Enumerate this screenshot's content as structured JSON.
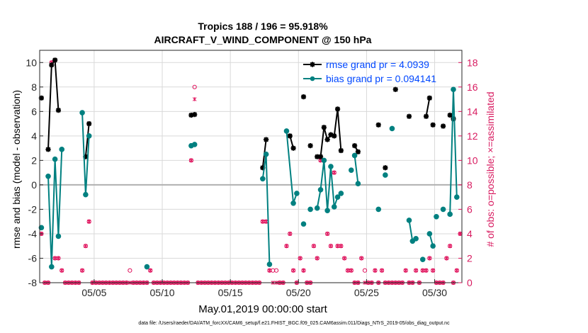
{
  "chart_data": {
    "type": "line",
    "title": "Tropics 188 / 196 = 95.918%",
    "subtitle": "AIRCRAFT_V_WIND_COMPONENT @ 150 hPa",
    "xlabel": "May.01,2019 00:00:00 start",
    "ylabel": "rmse and bias (model - observation)",
    "y2label": "# of obs: o=possible; ×=assimilated",
    "footnote": "data file: /Users/raeder/DAI/ATM_forcXX/CAM6_setup/f.e21.FHIST_BGC.f09_025.CAM6assim.011/Diags_NTrS_2019-05/obs_diag_output.nc",
    "xlim": [
      1.0,
      32.0
    ],
    "ylim": [
      -8,
      11
    ],
    "y2lim": [
      0,
      19
    ],
    "x_ticks": [
      5,
      10,
      15,
      20,
      25,
      30
    ],
    "x_tick_labels": [
      "05/05",
      "05/10",
      "05/15",
      "05/20",
      "05/25",
      "05/30"
    ],
    "y_ticks": [
      -8,
      -6,
      -4,
      -2,
      0,
      2,
      4,
      6,
      8,
      10
    ],
    "y_tick_labels": [
      "-8",
      "-6",
      "-4",
      "-2",
      "0",
      "2",
      "4",
      "6",
      "8",
      "10"
    ],
    "y2_ticks": [
      0,
      2,
      4,
      6,
      8,
      10,
      12,
      14,
      16,
      18
    ],
    "y2_tick_labels": [
      "0",
      "2",
      "4",
      "6",
      "8",
      "10",
      "12",
      "14",
      "16",
      "18"
    ],
    "grid": true,
    "legend_position": "top-right",
    "colors": {
      "rmse": "#000000",
      "bias": "#008080",
      "obs": "#e0105b",
      "zero": "#b0b0b0",
      "grid": "#d9d9d9"
    },
    "series": [
      {
        "name": "rmse grand pr = 4.0939",
        "marker": "asterisk",
        "segments": [
          [
            [
              1.125,
              7.1
            ]
          ],
          [
            [
              1.625,
              2.9
            ],
            [
              1.875,
              9.8
            ],
            [
              2.125,
              10.2
            ],
            [
              2.375,
              6.1
            ]
          ],
          [
            [
              4.375,
              2.3
            ],
            [
              4.625,
              5.0
            ]
          ],
          [
            [
              12.125,
              5.7
            ],
            [
              12.375,
              5.75
            ]
          ],
          [
            [
              17.375,
              1.4
            ],
            [
              17.625,
              3.7
            ]
          ],
          [
            [
              19.375,
              4.0
            ],
            [
              19.625,
              3.0
            ]
          ],
          [
            [
              20.375,
              7.2
            ]
          ],
          [
            [
              20.875,
              3.2
            ]
          ],
          [
            [
              21.375,
              2.3
            ],
            [
              21.625,
              2.3
            ],
            [
              21.875,
              4.7
            ],
            [
              22.125,
              3.7
            ],
            [
              22.375,
              4.1
            ],
            [
              22.625,
              4.0
            ],
            [
              22.875,
              6.2
            ],
            [
              23.125,
              2.8
            ]
          ],
          [
            [
              24.125,
              3.2
            ],
            [
              24.375,
              2.7
            ]
          ],
          [
            [
              25.875,
              4.9
            ]
          ],
          [
            [
              26.375,
              1.4
            ]
          ],
          [
            [
              27.125,
              7.8
            ]
          ],
          [
            [
              28.125,
              5.6
            ]
          ],
          [
            [
              29.375,
              5.6
            ],
            [
              29.625,
              7.1
            ]
          ],
          [
            [
              29.875,
              4.9
            ]
          ],
          [
            [
              30.625,
              4.8
            ]
          ],
          [
            [
              31.125,
              5.7
            ],
            [
              31.375,
              5.4
            ]
          ]
        ]
      },
      {
        "name": "bias grand pr = 0.094141",
        "marker": "circle",
        "segments": [
          [
            [
              1.125,
              -3.5
            ]
          ],
          [
            [
              1.625,
              0.7
            ],
            [
              1.875,
              -6.7
            ],
            [
              2.125,
              2.1
            ],
            [
              2.375,
              -4.2
            ],
            [
              2.625,
              2.9
            ]
          ],
          [
            [
              4.125,
              5.9
            ],
            [
              4.375,
              -0.8
            ],
            [
              4.625,
              4.0
            ]
          ],
          [
            [
              8.875,
              -6.7
            ]
          ],
          [
            [
              12.125,
              3.2
            ],
            [
              12.375,
              3.3
            ]
          ],
          [
            [
              17.375,
              0.5
            ],
            [
              17.625,
              2.5
            ],
            [
              17.875,
              -6.5
            ]
          ],
          [
            [
              19.125,
              4.4
            ],
            [
              19.625,
              -1.5
            ],
            [
              19.875,
              -0.7
            ]
          ],
          [
            [
              20.375,
              -3.2
            ]
          ],
          [
            [
              20.875,
              -2.0
            ]
          ],
          [
            [
              21.375,
              -1.9
            ],
            [
              21.625,
              -0.4
            ],
            [
              21.875,
              2.0
            ],
            [
              22.125,
              -2.1
            ],
            [
              22.375,
              1.5
            ],
            [
              22.625,
              -1.8
            ],
            [
              22.875,
              -1.0
            ],
            [
              23.125,
              -0.7
            ]
          ],
          [
            [
              23.875,
              1.2
            ]
          ],
          [
            [
              24.125,
              2.4
            ],
            [
              24.375,
              0.1
            ]
          ],
          [
            [
              25.875,
              -2.0
            ]
          ],
          [
            [
              26.375,
              0.8
            ]
          ],
          [
            [
              26.875,
              4.6
            ]
          ],
          [
            [
              28.125,
              -2.9
            ],
            [
              28.375,
              -4.6
            ],
            [
              28.625,
              -4.4
            ]
          ],
          [
            [
              29.125,
              -6.1
            ]
          ],
          [
            [
              29.625,
              -4.0
            ],
            [
              29.875,
              -5.0
            ]
          ],
          [
            [
              30.125,
              -2.6
            ]
          ],
          [
            [
              30.625,
              -2.0
            ]
          ],
          [
            [
              31.125,
              -2.4
            ],
            [
              31.375,
              7.8
            ],
            [
              31.625,
              -1.0
            ]
          ]
        ]
      }
    ],
    "obs_possible": [
      [
        1.125,
        4
      ],
      [
        1.375,
        0
      ],
      [
        1.625,
        0
      ],
      [
        1.875,
        18
      ],
      [
        2.125,
        2
      ],
      [
        2.375,
        2
      ],
      [
        2.625,
        1
      ],
      [
        2.875,
        0
      ],
      [
        3.125,
        0
      ],
      [
        3.375,
        0
      ],
      [
        3.625,
        0
      ],
      [
        3.875,
        0
      ],
      [
        4.125,
        1
      ],
      [
        4.375,
        3
      ],
      [
        4.625,
        5
      ],
      [
        4.875,
        0
      ],
      [
        5.125,
        0
      ],
      [
        5.375,
        0
      ],
      [
        5.625,
        0
      ],
      [
        5.875,
        0
      ],
      [
        6.125,
        0
      ],
      [
        6.375,
        0
      ],
      [
        6.625,
        0
      ],
      [
        6.875,
        0
      ],
      [
        7.125,
        0
      ],
      [
        7.375,
        0
      ],
      [
        7.625,
        1
      ],
      [
        7.875,
        0
      ],
      [
        8.125,
        0
      ],
      [
        8.375,
        0
      ],
      [
        8.625,
        0
      ],
      [
        8.875,
        0
      ],
      [
        9.125,
        1
      ],
      [
        9.375,
        0
      ],
      [
        9.625,
        0
      ],
      [
        9.875,
        0
      ],
      [
        10.125,
        0
      ],
      [
        10.375,
        0
      ],
      [
        10.625,
        0
      ],
      [
        10.875,
        0
      ],
      [
        11.125,
        0
      ],
      [
        11.375,
        0
      ],
      [
        11.625,
        0
      ],
      [
        11.875,
        0
      ],
      [
        12.125,
        10
      ],
      [
        12.375,
        16
      ],
      [
        12.625,
        0
      ],
      [
        12.875,
        0
      ],
      [
        13.125,
        0
      ],
      [
        13.375,
        0
      ],
      [
        13.625,
        0
      ],
      [
        13.875,
        0
      ],
      [
        14.125,
        0
      ],
      [
        14.375,
        0
      ],
      [
        14.625,
        0
      ],
      [
        14.875,
        0
      ],
      [
        15.125,
        0
      ],
      [
        15.375,
        0
      ],
      [
        15.625,
        0
      ],
      [
        15.875,
        0
      ],
      [
        16.125,
        0
      ],
      [
        16.375,
        0
      ],
      [
        16.625,
        0
      ],
      [
        16.875,
        0
      ],
      [
        17.125,
        0
      ],
      [
        17.375,
        5
      ],
      [
        17.625,
        5
      ],
      [
        17.875,
        1
      ],
      [
        18.125,
        1
      ],
      [
        18.375,
        1
      ],
      [
        18.625,
        0
      ],
      [
        18.875,
        0
      ],
      [
        19.125,
        3
      ],
      [
        19.375,
        4
      ],
      [
        19.625,
        1
      ],
      [
        19.875,
        0
      ],
      [
        20.125,
        2
      ],
      [
        20.375,
        1
      ],
      [
        20.625,
        0
      ],
      [
        20.875,
        0
      ],
      [
        21.125,
        3
      ],
      [
        21.375,
        2
      ],
      [
        21.625,
        10
      ],
      [
        21.875,
        10
      ],
      [
        22.125,
        4
      ],
      [
        22.375,
        3
      ],
      [
        22.625,
        9
      ],
      [
        22.875,
        3
      ],
      [
        23.125,
        3
      ],
      [
        23.375,
        2
      ],
      [
        23.625,
        1
      ],
      [
        23.875,
        1
      ],
      [
        24.125,
        0
      ],
      [
        24.375,
        0
      ],
      [
        24.625,
        2
      ],
      [
        24.875,
        1
      ],
      [
        25.125,
        0
      ],
      [
        25.375,
        0
      ],
      [
        25.625,
        1
      ],
      [
        25.875,
        0
      ],
      [
        26.125,
        1
      ],
      [
        26.375,
        0
      ],
      [
        26.625,
        0
      ],
      [
        26.875,
        0
      ],
      [
        27.125,
        0
      ],
      [
        27.375,
        0
      ],
      [
        27.625,
        0
      ],
      [
        27.875,
        1
      ],
      [
        28.125,
        0
      ],
      [
        28.375,
        0
      ],
      [
        28.625,
        1
      ],
      [
        28.875,
        0
      ],
      [
        29.125,
        1
      ],
      [
        29.375,
        1
      ],
      [
        29.625,
        2
      ],
      [
        29.875,
        1
      ],
      [
        30.125,
        0
      ],
      [
        30.375,
        0
      ],
      [
        30.625,
        0
      ],
      [
        30.875,
        2
      ],
      [
        31.125,
        3
      ],
      [
        31.375,
        0
      ],
      [
        31.625,
        1
      ],
      [
        31.875,
        4
      ]
    ],
    "obs_assimilated": [
      [
        1.125,
        4
      ],
      [
        1.375,
        0
      ],
      [
        1.625,
        0
      ],
      [
        1.875,
        18
      ],
      [
        2.125,
        2
      ],
      [
        2.375,
        2
      ],
      [
        2.625,
        1
      ],
      [
        2.875,
        0
      ],
      [
        3.125,
        0
      ],
      [
        3.375,
        0
      ],
      [
        3.625,
        0
      ],
      [
        3.875,
        0
      ],
      [
        4.125,
        1
      ],
      [
        4.375,
        3
      ],
      [
        4.625,
        5
      ],
      [
        4.875,
        0
      ],
      [
        5.125,
        0
      ],
      [
        5.375,
        0
      ],
      [
        5.625,
        0
      ],
      [
        5.875,
        0
      ],
      [
        6.125,
        0
      ],
      [
        6.375,
        0
      ],
      [
        6.625,
        0
      ],
      [
        6.875,
        0
      ],
      [
        7.125,
        0
      ],
      [
        7.375,
        0
      ],
      [
        7.625,
        0
      ],
      [
        7.875,
        0
      ],
      [
        8.125,
        0
      ],
      [
        8.375,
        0
      ],
      [
        8.625,
        0
      ],
      [
        8.875,
        0
      ],
      [
        9.125,
        1
      ],
      [
        9.375,
        0
      ],
      [
        9.625,
        0
      ],
      [
        9.875,
        0
      ],
      [
        10.125,
        0
      ],
      [
        10.375,
        0
      ],
      [
        10.625,
        0
      ],
      [
        10.875,
        0
      ],
      [
        11.125,
        0
      ],
      [
        11.375,
        0
      ],
      [
        11.625,
        0
      ],
      [
        11.875,
        0
      ],
      [
        12.125,
        10
      ],
      [
        12.375,
        15
      ],
      [
        12.625,
        0
      ],
      [
        12.875,
        0
      ],
      [
        13.125,
        0
      ],
      [
        13.375,
        0
      ],
      [
        13.625,
        0
      ],
      [
        13.875,
        0
      ],
      [
        14.125,
        0
      ],
      [
        14.375,
        0
      ],
      [
        14.625,
        0
      ],
      [
        14.875,
        0
      ],
      [
        15.125,
        0
      ],
      [
        15.375,
        0
      ],
      [
        15.625,
        0
      ],
      [
        15.875,
        0
      ],
      [
        16.125,
        0
      ],
      [
        16.375,
        0
      ],
      [
        16.625,
        0
      ],
      [
        16.875,
        0
      ],
      [
        17.125,
        0
      ],
      [
        17.375,
        5
      ],
      [
        17.625,
        5
      ],
      [
        17.875,
        1
      ],
      [
        18.125,
        0
      ],
      [
        18.375,
        0
      ],
      [
        18.625,
        0
      ],
      [
        18.875,
        0
      ],
      [
        19.125,
        3
      ],
      [
        19.375,
        4
      ],
      [
        19.625,
        1
      ],
      [
        19.875,
        0
      ],
      [
        20.125,
        2
      ],
      [
        20.375,
        1
      ],
      [
        20.625,
        0
      ],
      [
        20.875,
        0
      ],
      [
        21.125,
        3
      ],
      [
        21.375,
        2
      ],
      [
        21.625,
        10
      ],
      [
        21.875,
        10
      ],
      [
        22.125,
        4
      ],
      [
        22.375,
        3
      ],
      [
        22.625,
        9
      ],
      [
        22.875,
        3
      ],
      [
        23.125,
        3
      ],
      [
        23.375,
        2
      ],
      [
        23.625,
        1
      ],
      [
        23.875,
        1
      ],
      [
        24.125,
        0
      ],
      [
        24.375,
        0
      ],
      [
        24.625,
        2
      ],
      [
        24.875,
        0
      ],
      [
        25.125,
        0
      ],
      [
        25.375,
        0
      ],
      [
        25.625,
        1
      ],
      [
        25.875,
        0
      ],
      [
        26.125,
        1
      ],
      [
        26.375,
        0
      ],
      [
        26.625,
        0
      ],
      [
        26.875,
        0
      ],
      [
        27.125,
        0
      ],
      [
        27.375,
        0
      ],
      [
        27.625,
        0
      ],
      [
        27.875,
        1
      ],
      [
        28.125,
        0
      ],
      [
        28.375,
        0
      ],
      [
        28.625,
        1
      ],
      [
        28.875,
        0
      ],
      [
        29.125,
        1
      ],
      [
        29.375,
        1
      ],
      [
        29.625,
        2
      ],
      [
        29.875,
        1
      ],
      [
        30.125,
        0
      ],
      [
        30.375,
        0
      ],
      [
        30.625,
        0
      ],
      [
        30.875,
        2
      ],
      [
        31.125,
        3
      ],
      [
        31.375,
        0
      ],
      [
        31.625,
        1
      ],
      [
        31.875,
        4
      ]
    ]
  }
}
